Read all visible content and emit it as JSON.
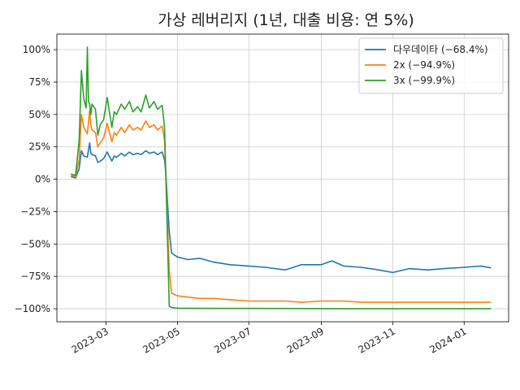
{
  "chart_data": {
    "type": "line",
    "title": "가상 레버리지 (1년, 대출 비용: 연 5%)",
    "xlabel": "",
    "ylabel": "",
    "ylim": [
      -110,
      112
    ],
    "xlim": [
      "2023-01-18",
      "2024-02-08"
    ],
    "grid": true,
    "legend_position": "top-right",
    "x_ticks": [
      "2023-03",
      "2023-05",
      "2023-07",
      "2023-09",
      "2023-11",
      "2024-01"
    ],
    "x_tick_dates": [
      "2023-03-01",
      "2023-05-01",
      "2023-07-01",
      "2023-09-01",
      "2023-11-01",
      "2024-01-01"
    ],
    "y_ticks": [
      100,
      75,
      50,
      25,
      0,
      -25,
      -50,
      -75,
      -100
    ],
    "y_tick_labels": [
      "100%",
      "75%",
      "50%",
      "25%",
      "0%",
      "−25%",
      "−50%",
      "−75%",
      "−100%"
    ],
    "series": [
      {
        "name": "다우데이타 (−68.4%)",
        "color": "#1f77b4",
        "x": [
          "2023-01-30",
          "2023-02-03",
          "2023-02-06",
          "2023-02-08",
          "2023-02-10",
          "2023-02-13",
          "2023-02-15",
          "2023-02-16",
          "2023-02-17",
          "2023-02-20",
          "2023-02-22",
          "2023-02-24",
          "2023-02-27",
          "2023-03-02",
          "2023-03-06",
          "2023-03-08",
          "2023-03-10",
          "2023-03-14",
          "2023-03-17",
          "2023-03-21",
          "2023-03-24",
          "2023-03-28",
          "2023-03-31",
          "2023-04-04",
          "2023-04-07",
          "2023-04-11",
          "2023-04-14",
          "2023-04-18",
          "2023-04-20",
          "2023-04-21",
          "2023-04-24",
          "2023-04-26",
          "2023-05-01",
          "2023-05-10",
          "2023-05-20",
          "2023-06-01",
          "2023-06-15",
          "2023-07-01",
          "2023-07-15",
          "2023-08-01",
          "2023-08-15",
          "2023-09-01",
          "2023-09-10",
          "2023-09-20",
          "2023-10-05",
          "2023-10-20",
          "2023-11-01",
          "2023-11-15",
          "2023-12-01",
          "2023-12-15",
          "2024-01-01",
          "2024-01-15",
          "2024-01-24"
        ],
        "values": [
          2,
          1,
          8,
          22,
          18,
          17,
          28,
          20,
          19,
          18,
          13,
          14,
          16,
          21,
          14,
          18,
          17,
          20,
          18,
          21,
          19,
          20,
          19,
          22,
          20,
          21,
          19,
          21,
          15,
          5,
          -40,
          -57,
          -60,
          -62,
          -61,
          -64,
          -66,
          -67,
          -68,
          -70,
          -66,
          -66,
          -63,
          -67,
          -68,
          -70,
          -72,
          -69,
          -70,
          -69,
          -68,
          -67,
          -68.4
        ]
      },
      {
        "name": "2x (−94.9%)",
        "color": "#ff7f0e",
        "x": [
          "2023-01-30",
          "2023-02-03",
          "2023-02-06",
          "2023-02-08",
          "2023-02-10",
          "2023-02-13",
          "2023-02-15",
          "2023-02-16",
          "2023-02-17",
          "2023-02-20",
          "2023-02-22",
          "2023-02-24",
          "2023-02-27",
          "2023-03-02",
          "2023-03-06",
          "2023-03-08",
          "2023-03-10",
          "2023-03-14",
          "2023-03-17",
          "2023-03-21",
          "2023-03-24",
          "2023-03-28",
          "2023-03-31",
          "2023-04-04",
          "2023-04-07",
          "2023-04-11",
          "2023-04-14",
          "2023-04-18",
          "2023-04-20",
          "2023-04-21",
          "2023-04-24",
          "2023-04-26",
          "2023-05-01",
          "2023-05-10",
          "2023-05-20",
          "2023-06-01",
          "2023-06-15",
          "2023-07-01",
          "2023-07-15",
          "2023-08-01",
          "2023-08-15",
          "2023-09-01",
          "2023-09-10",
          "2023-09-20",
          "2023-10-05",
          "2023-10-20",
          "2023-11-01",
          "2023-11-15",
          "2023-12-01",
          "2023-12-15",
          "2024-01-01",
          "2024-01-15",
          "2024-01-24"
        ],
        "values": [
          3,
          2,
          15,
          50,
          40,
          35,
          53,
          42,
          38,
          36,
          25,
          28,
          32,
          43,
          29,
          36,
          34,
          40,
          36,
          42,
          38,
          40,
          38,
          45,
          40,
          42,
          38,
          41,
          30,
          5,
          -70,
          -88,
          -90,
          -91,
          -92,
          -92,
          -93,
          -94,
          -94,
          -94,
          -95,
          -94,
          -94,
          -94,
          -95,
          -95,
          -95,
          -95,
          -95,
          -95,
          -95,
          -95,
          -94.9
        ]
      },
      {
        "name": "3x (−99.9%)",
        "color": "#2ca02c",
        "x": [
          "2023-01-30",
          "2023-02-03",
          "2023-02-06",
          "2023-02-08",
          "2023-02-10",
          "2023-02-12",
          "2023-02-13",
          "2023-02-14",
          "2023-02-15",
          "2023-02-16",
          "2023-02-17",
          "2023-02-20",
          "2023-02-22",
          "2023-02-24",
          "2023-02-27",
          "2023-03-02",
          "2023-03-06",
          "2023-03-08",
          "2023-03-10",
          "2023-03-14",
          "2023-03-17",
          "2023-03-21",
          "2023-03-24",
          "2023-03-28",
          "2023-03-31",
          "2023-04-04",
          "2023-04-07",
          "2023-04-11",
          "2023-04-14",
          "2023-04-18",
          "2023-04-20",
          "2023-04-21",
          "2023-04-24",
          "2023-04-26",
          "2023-05-01",
          "2023-06-01",
          "2023-08-01",
          "2023-10-01",
          "2023-12-01",
          "2024-01-24"
        ],
        "values": [
          4,
          3,
          30,
          84,
          62,
          55,
          102,
          60,
          58,
          50,
          58,
          54,
          34,
          42,
          46,
          63,
          40,
          52,
          50,
          58,
          54,
          60,
          52,
          56,
          52,
          65,
          55,
          60,
          54,
          57,
          40,
          5,
          -98,
          -99,
          -99.5,
          -99.7,
          -99.8,
          -99.9,
          -99.9,
          -99.9
        ]
      }
    ]
  }
}
